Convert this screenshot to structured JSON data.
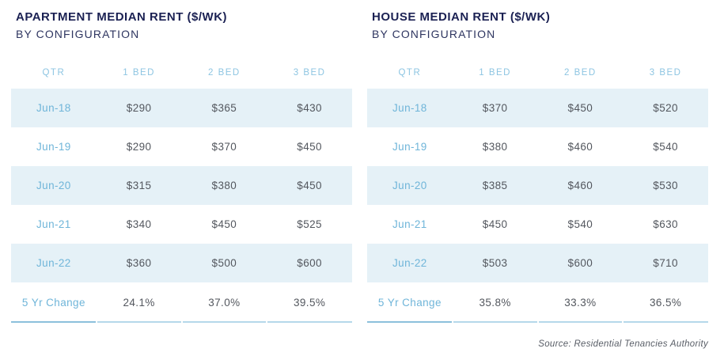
{
  "report": {
    "source_note": "Source: Residential Tenancies Authority"
  },
  "colors": {
    "title_navy": "#1b2153",
    "subtitle_navy": "#2e3560",
    "header_blue": "#8dc5e2",
    "label_blue": "#6fb5d9",
    "value_gray": "#53575e",
    "row_shade": "#e5f1f7",
    "underline_blue": "#b5d8ea",
    "underline_blue_dark": "#8cc0dc"
  },
  "tables": [
    {
      "title": "APARTMENT MEDIAN RENT ($/WK)",
      "subtitle": "BY CONFIGURATION",
      "columns": [
        "QTR",
        "1 BED",
        "2 BED",
        "3 BED"
      ],
      "rows": [
        {
          "qtr": "Jun-18",
          "values": [
            "$290",
            "$365",
            "$430"
          ]
        },
        {
          "qtr": "Jun-19",
          "values": [
            "$290",
            "$370",
            "$450"
          ]
        },
        {
          "qtr": "Jun-20",
          "values": [
            "$315",
            "$380",
            "$450"
          ]
        },
        {
          "qtr": "Jun-21",
          "values": [
            "$340",
            "$450",
            "$525"
          ]
        },
        {
          "qtr": "Jun-22",
          "values": [
            "$360",
            "$500",
            "$600"
          ]
        }
      ],
      "change": {
        "label": "5 Yr Change",
        "values": [
          "24.1%",
          "37.0%",
          "39.5%"
        ]
      }
    },
    {
      "title": "HOUSE MEDIAN RENT ($/WK)",
      "subtitle": "BY CONFIGURATION",
      "columns": [
        "QTR",
        "1 BED",
        "2 BED",
        "3 BED"
      ],
      "rows": [
        {
          "qtr": "Jun-18",
          "values": [
            "$370",
            "$450",
            "$520"
          ]
        },
        {
          "qtr": "Jun-19",
          "values": [
            "$380",
            "$460",
            "$540"
          ]
        },
        {
          "qtr": "Jun-20",
          "values": [
            "$385",
            "$460",
            "$530"
          ]
        },
        {
          "qtr": "Jun-21",
          "values": [
            "$450",
            "$540",
            "$630"
          ]
        },
        {
          "qtr": "Jun-22",
          "values": [
            "$503",
            "$600",
            "$710"
          ]
        }
      ],
      "change": {
        "label": "5 Yr Change",
        "values": [
          "35.8%",
          "33.3%",
          "36.5%"
        ]
      }
    }
  ],
  "chart_data": [
    {
      "type": "table",
      "title": "APARTMENT MEDIAN RENT ($/WK) BY CONFIGURATION",
      "columns": [
        "QTR",
        "1 BED",
        "2 BED",
        "3 BED"
      ],
      "rows": [
        [
          "Jun-18",
          290,
          365,
          430
        ],
        [
          "Jun-19",
          290,
          370,
          450
        ],
        [
          "Jun-20",
          315,
          380,
          450
        ],
        [
          "Jun-21",
          340,
          450,
          525
        ],
        [
          "Jun-22",
          360,
          500,
          600
        ],
        [
          "5 Yr Change",
          "24.1%",
          "37.0%",
          "39.5%"
        ]
      ],
      "units": "dollars per week",
      "notes": "odd data rows shaded light blue; values centered per column"
    },
    {
      "type": "table",
      "title": "HOUSE MEDIAN RENT ($/WK) BY CONFIGURATION",
      "columns": [
        "QTR",
        "1 BED",
        "2 BED",
        "3 BED"
      ],
      "rows": [
        [
          "Jun-18",
          370,
          450,
          520
        ],
        [
          "Jun-19",
          380,
          460,
          540
        ],
        [
          "Jun-20",
          385,
          460,
          530
        ],
        [
          "Jun-21",
          450,
          540,
          630
        ],
        [
          "Jun-22",
          503,
          600,
          710
        ],
        [
          "5 Yr Change",
          "35.8%",
          "33.3%",
          "36.5%"
        ]
      ],
      "units": "dollars per week",
      "notes": "odd data rows shaded light blue; values centered per column"
    }
  ]
}
